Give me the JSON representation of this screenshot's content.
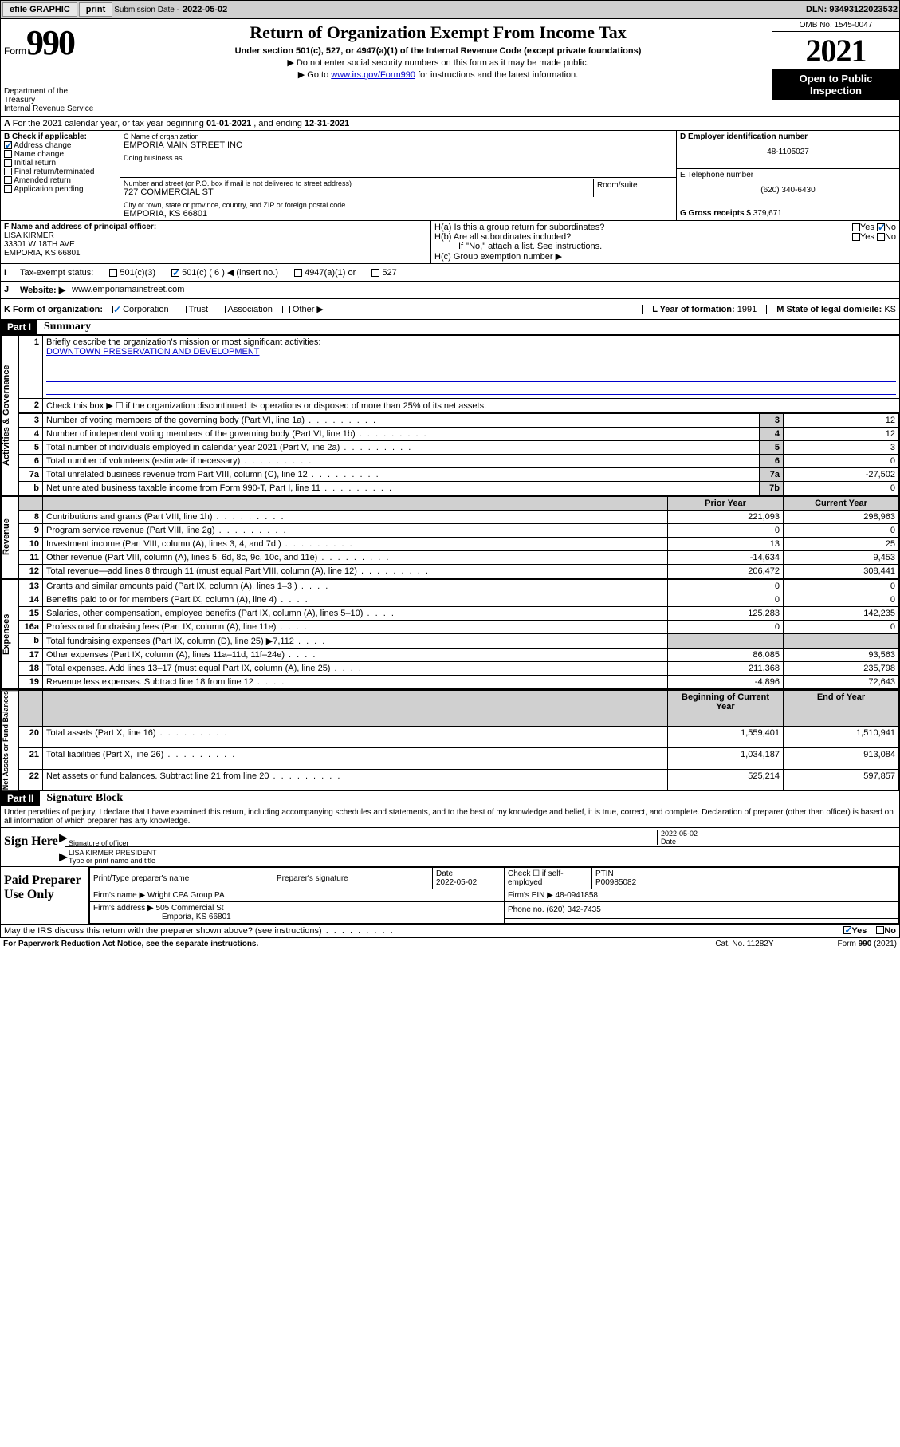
{
  "topbar": {
    "efile": "efile GRAPHIC",
    "print": "print",
    "sub_label": "Submission Date - ",
    "sub_date": "2022-05-02",
    "dln_label": "DLN: ",
    "dln": "93493122023532"
  },
  "header": {
    "form_word": "Form",
    "form_num": "990",
    "title": "Return of Organization Exempt From Income Tax",
    "subtitle": "Under section 501(c), 527, or 4947(a)(1) of the Internal Revenue Code (except private foundations)",
    "instr1": "Do not enter social security numbers on this form as it may be made public.",
    "instr2_pre": "Go to ",
    "instr2_link": "www.irs.gov/Form990",
    "instr2_post": " for instructions and the latest information.",
    "dept": "Department of the Treasury\nInternal Revenue Service",
    "omb": "OMB No. 1545-0047",
    "year": "2021",
    "open": "Open to Public Inspection"
  },
  "row_a": {
    "text": "For the 2021 calendar year, or tax year beginning ",
    "begin": "01-01-2021",
    "mid": " , and ending ",
    "end": "12-31-2021"
  },
  "section_b": {
    "label": "B Check if applicable:",
    "items": [
      "Address change",
      "Name change",
      "Initial return",
      "Final return/terminated",
      "Amended return",
      "Application pending"
    ],
    "checked_idx": 0
  },
  "section_c": {
    "name_label": "C Name of organization",
    "name": "EMPORIA MAIN STREET INC",
    "dba_label": "Doing business as",
    "addr_label": "Number and street (or P.O. box if mail is not delivered to street address)",
    "room_label": "Room/suite",
    "addr": "727 COMMERCIAL ST",
    "city_label": "City or town, state or province, country, and ZIP or foreign postal code",
    "city": "EMPORIA, KS  66801"
  },
  "section_d": {
    "ein_label": "D Employer identification number",
    "ein": "48-1105027",
    "tel_label": "E Telephone number",
    "tel": "(620) 340-6430",
    "gross_label": "G Gross receipts $ ",
    "gross": "379,671"
  },
  "section_f": {
    "label": "F  Name and address of principal officer:",
    "name": "LISA KIRMER",
    "addr1": "33301 W 18TH AVE",
    "addr2": "EMPORIA, KS  66801"
  },
  "section_h": {
    "a_label": "H(a)  Is this a group return for subordinates?",
    "b_label": "H(b)  Are all subordinates included?",
    "note": "If \"No,\" attach a list. See instructions.",
    "c_label": "H(c)  Group exemption number ▶",
    "yes": "Yes",
    "no": "No"
  },
  "row_i": {
    "label": "Tax-exempt status:",
    "opts": [
      "501(c)(3)",
      "501(c) ( 6 ) ◀ (insert no.)",
      "4947(a)(1) or",
      "527"
    ],
    "checked_idx": 1
  },
  "row_j": {
    "label": "Website: ▶",
    "val": "www.emporiamainstreet.com"
  },
  "row_k": {
    "label": "K Form of organization:",
    "opts": [
      "Corporation",
      "Trust",
      "Association",
      "Other ▶"
    ],
    "checked_idx": 0,
    "l_label": "L Year of formation: ",
    "l_val": "1991",
    "m_label": "M State of legal domicile: ",
    "m_val": "KS"
  },
  "part1": {
    "num": "Part I",
    "title": "Summary"
  },
  "summary": {
    "q1": "Briefly describe the organization's mission or most significant activities:",
    "mission": "DOWNTOWN PRESERVATION AND DEVELOPMENT",
    "q2": "Check this box ▶ ☐  if the organization discontinued its operations or disposed of more than 25% of its net assets.",
    "side_labels": [
      "Activities & Governance",
      "Revenue",
      "Expenses",
      "Net Assets or Fund Balances"
    ],
    "rows_gov": [
      {
        "n": "3",
        "t": "Number of voting members of the governing body (Part VI, line 1a)",
        "rn": "3",
        "v": "12"
      },
      {
        "n": "4",
        "t": "Number of independent voting members of the governing body (Part VI, line 1b)",
        "rn": "4",
        "v": "12"
      },
      {
        "n": "5",
        "t": "Total number of individuals employed in calendar year 2021 (Part V, line 2a)",
        "rn": "5",
        "v": "3"
      },
      {
        "n": "6",
        "t": "Total number of volunteers (estimate if necessary)",
        "rn": "6",
        "v": "0"
      },
      {
        "n": "7a",
        "t": "Total unrelated business revenue from Part VIII, column (C), line 12",
        "rn": "7a",
        "v": "-27,502"
      },
      {
        "n": "b",
        "t": "Net unrelated business taxable income from Form 990-T, Part I, line 11",
        "rn": "7b",
        "v": "0"
      }
    ],
    "hdr_prior": "Prior Year",
    "hdr_curr": "Current Year",
    "rows_rev": [
      {
        "n": "8",
        "t": "Contributions and grants (Part VIII, line 1h)",
        "p": "221,093",
        "c": "298,963"
      },
      {
        "n": "9",
        "t": "Program service revenue (Part VIII, line 2g)",
        "p": "0",
        "c": "0"
      },
      {
        "n": "10",
        "t": "Investment income (Part VIII, column (A), lines 3, 4, and 7d )",
        "p": "13",
        "c": "25"
      },
      {
        "n": "11",
        "t": "Other revenue (Part VIII, column (A), lines 5, 6d, 8c, 9c, 10c, and 11e)",
        "p": "-14,634",
        "c": "9,453"
      },
      {
        "n": "12",
        "t": "Total revenue—add lines 8 through 11 (must equal Part VIII, column (A), line 12)",
        "p": "206,472",
        "c": "308,441"
      }
    ],
    "rows_exp": [
      {
        "n": "13",
        "t": "Grants and similar amounts paid (Part IX, column (A), lines 1–3 )",
        "p": "0",
        "c": "0"
      },
      {
        "n": "14",
        "t": "Benefits paid to or for members (Part IX, column (A), line 4)",
        "p": "0",
        "c": "0"
      },
      {
        "n": "15",
        "t": "Salaries, other compensation, employee benefits (Part IX, column (A), lines 5–10)",
        "p": "125,283",
        "c": "142,235"
      },
      {
        "n": "16a",
        "t": "Professional fundraising fees (Part IX, column (A), line 11e)",
        "p": "0",
        "c": "0"
      },
      {
        "n": "b",
        "t": "Total fundraising expenses (Part IX, column (D), line 25) ▶7,112",
        "p": "",
        "c": "",
        "shade": true
      },
      {
        "n": "17",
        "t": "Other expenses (Part IX, column (A), lines 11a–11d, 11f–24e)",
        "p": "86,085",
        "c": "93,563"
      },
      {
        "n": "18",
        "t": "Total expenses. Add lines 13–17 (must equal Part IX, column (A), line 25)",
        "p": "211,368",
        "c": "235,798"
      },
      {
        "n": "19",
        "t": "Revenue less expenses. Subtract line 18 from line 12",
        "p": "-4,896",
        "c": "72,643"
      }
    ],
    "hdr_begin": "Beginning of Current Year",
    "hdr_end": "End of Year",
    "rows_net": [
      {
        "n": "20",
        "t": "Total assets (Part X, line 16)",
        "p": "1,559,401",
        "c": "1,510,941"
      },
      {
        "n": "21",
        "t": "Total liabilities (Part X, line 26)",
        "p": "1,034,187",
        "c": "913,084"
      },
      {
        "n": "22",
        "t": "Net assets or fund balances. Subtract line 21 from line 20",
        "p": "525,214",
        "c": "597,857"
      }
    ]
  },
  "part2": {
    "num": "Part II",
    "title": "Signature Block"
  },
  "sig": {
    "penalty": "Under penalties of perjury, I declare that I have examined this return, including accompanying schedules and statements, and to the best of my knowledge and belief, it is true, correct, and complete. Declaration of preparer (other than officer) is based on all information of which preparer has any knowledge.",
    "sign_here": "Sign Here",
    "sig_officer": "Signature of officer",
    "sig_date": "2022-05-02",
    "date_label": "Date",
    "name_title": "LISA KIRMER PRESIDENT",
    "name_label": "Type or print name and title"
  },
  "prep": {
    "label": "Paid Preparer Use Only",
    "h_name": "Print/Type preparer's name",
    "h_sig": "Preparer's signature",
    "h_date": "Date",
    "date": "2022-05-02",
    "h_check": "Check ☐ if self-employed",
    "h_ptin": "PTIN",
    "ptin": "P00985082",
    "firm_name_l": "Firm's name    ▶",
    "firm_name": "Wright CPA Group PA",
    "firm_ein_l": "Firm's EIN ▶ ",
    "firm_ein": "48-0941858",
    "firm_addr_l": "Firm's address ▶",
    "firm_addr": "505 Commercial St",
    "firm_city": "Emporia, KS  66801",
    "phone_l": "Phone no. ",
    "phone": "(620) 342-7435"
  },
  "footer": {
    "discuss": "May the IRS discuss this return with the preparer shown above? (see instructions)",
    "yes": "Yes",
    "no": "No",
    "paperwork": "For Paperwork Reduction Act Notice, see the separate instructions.",
    "cat": "Cat. No. 11282Y",
    "form": "Form 990 (2021)"
  }
}
